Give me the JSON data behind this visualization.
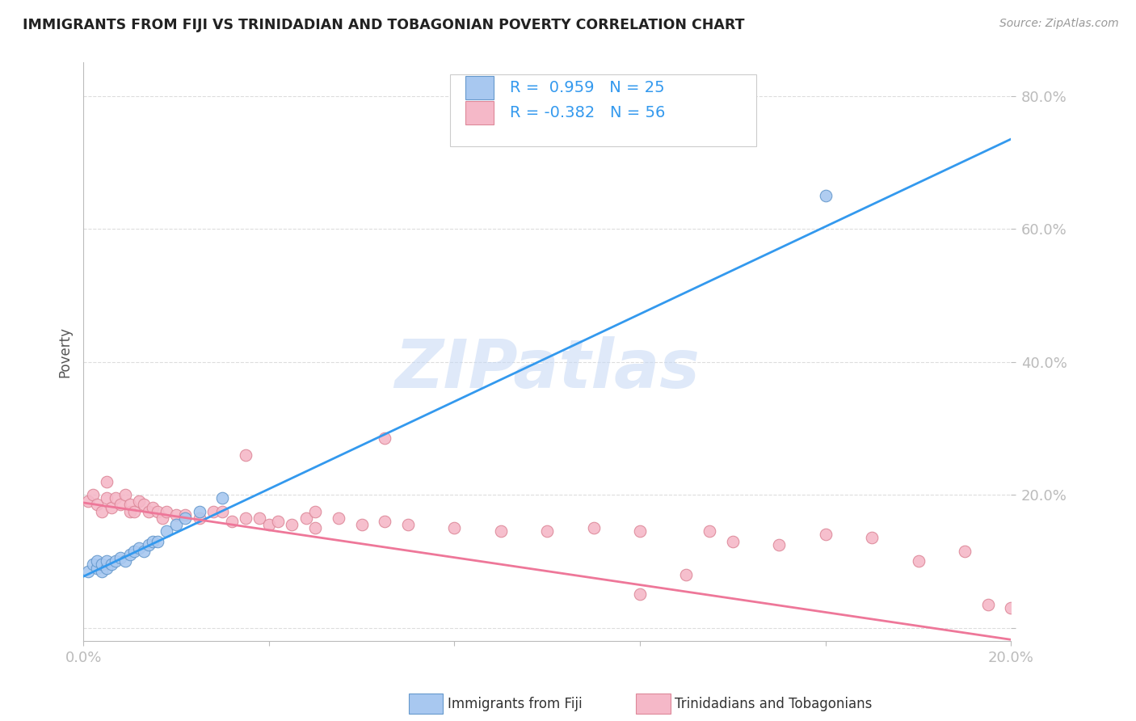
{
  "title": "IMMIGRANTS FROM FIJI VS TRINIDADIAN AND TOBAGONIAN POVERTY CORRELATION CHART",
  "source": "Source: ZipAtlas.com",
  "ylabel_label": "Poverty",
  "x_min": 0.0,
  "x_max": 0.2,
  "y_min": -0.02,
  "y_max": 0.85,
  "x_ticks": [
    0.0,
    0.04,
    0.08,
    0.12,
    0.16,
    0.2
  ],
  "x_tick_labels": [
    "0.0%",
    "",
    "",
    "",
    "",
    "20.0%"
  ],
  "y_ticks": [
    0.0,
    0.2,
    0.4,
    0.6,
    0.8
  ],
  "y_tick_labels": [
    "",
    "20.0%",
    "40.0%",
    "60.0%",
    "80.0%"
  ],
  "fiji_color": "#A8C8F0",
  "fiji_edge_color": "#6699CC",
  "tt_color": "#F5B8C8",
  "tt_edge_color": "#DD8899",
  "fiji_R": 0.959,
  "fiji_N": 25,
  "tt_R": -0.382,
  "tt_N": 56,
  "legend_label_fiji": "Immigrants from Fiji",
  "legend_label_tt": "Trinidadians and Tobagonians",
  "fiji_scatter_x": [
    0.001,
    0.002,
    0.003,
    0.003,
    0.004,
    0.004,
    0.005,
    0.005,
    0.006,
    0.007,
    0.008,
    0.009,
    0.01,
    0.011,
    0.012,
    0.013,
    0.014,
    0.015,
    0.016,
    0.018,
    0.02,
    0.022,
    0.025,
    0.03,
    0.16
  ],
  "fiji_scatter_y": [
    0.085,
    0.095,
    0.09,
    0.1,
    0.085,
    0.095,
    0.09,
    0.1,
    0.095,
    0.1,
    0.105,
    0.1,
    0.11,
    0.115,
    0.12,
    0.115,
    0.125,
    0.13,
    0.13,
    0.145,
    0.155,
    0.165,
    0.175,
    0.195,
    0.65
  ],
  "tt_scatter_x": [
    0.001,
    0.002,
    0.003,
    0.004,
    0.005,
    0.005,
    0.006,
    0.007,
    0.008,
    0.009,
    0.01,
    0.01,
    0.011,
    0.012,
    0.013,
    0.014,
    0.015,
    0.016,
    0.017,
    0.018,
    0.02,
    0.022,
    0.025,
    0.028,
    0.03,
    0.032,
    0.035,
    0.038,
    0.04,
    0.042,
    0.045,
    0.048,
    0.05,
    0.055,
    0.06,
    0.065,
    0.07,
    0.08,
    0.09,
    0.1,
    0.11,
    0.12,
    0.13,
    0.135,
    0.14,
    0.15,
    0.16,
    0.17,
    0.18,
    0.19,
    0.195,
    0.2,
    0.035,
    0.05,
    0.065,
    0.12
  ],
  "tt_scatter_y": [
    0.19,
    0.2,
    0.185,
    0.175,
    0.22,
    0.195,
    0.18,
    0.195,
    0.185,
    0.2,
    0.175,
    0.185,
    0.175,
    0.19,
    0.185,
    0.175,
    0.18,
    0.175,
    0.165,
    0.175,
    0.17,
    0.17,
    0.165,
    0.175,
    0.175,
    0.16,
    0.165,
    0.165,
    0.155,
    0.16,
    0.155,
    0.165,
    0.15,
    0.165,
    0.155,
    0.285,
    0.155,
    0.15,
    0.145,
    0.145,
    0.15,
    0.145,
    0.08,
    0.145,
    0.13,
    0.125,
    0.14,
    0.135,
    0.1,
    0.115,
    0.035,
    0.03,
    0.26,
    0.175,
    0.16,
    0.05
  ],
  "watermark_text": "ZIPatlas",
  "background_color": "#FFFFFF",
  "grid_color": "#DDDDDD",
  "blue_line_color": "#3399EE",
  "pink_line_color": "#EE7799",
  "fiji_line_x0": 0.0,
  "fiji_line_y0": 0.077,
  "fiji_line_x1": 0.2,
  "fiji_line_y1": 0.735,
  "tt_line_x0": 0.0,
  "tt_line_y0": 0.188,
  "tt_line_x1": 0.2,
  "tt_line_y1": -0.018
}
